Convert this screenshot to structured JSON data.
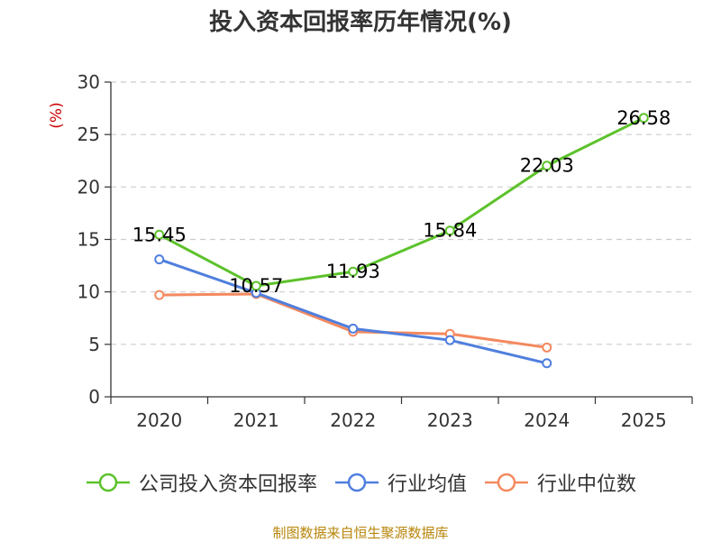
{
  "chart_data": {
    "type": "line",
    "title": "投入资本回报率历年情况(%)",
    "ylabel": "(%)",
    "xlabel": "",
    "categories": [
      "2020",
      "2021",
      "2022",
      "2023",
      "2024",
      "2025"
    ],
    "ylim": [
      0,
      30
    ],
    "yticks": [
      0,
      5,
      10,
      15,
      20,
      25,
      30
    ],
    "grid": true,
    "legend_position": "bottom",
    "series": [
      {
        "name": "公司投入资本回报率",
        "color": "#5cc22a",
        "values": [
          15.45,
          10.57,
          11.93,
          15.84,
          22.03,
          26.58
        ],
        "data_labels": [
          "15.45",
          "10.57",
          "11.93",
          "15.84",
          "22.03",
          "26.58"
        ]
      },
      {
        "name": "行业均值",
        "color": "#4f7fde",
        "values": [
          13.1,
          9.9,
          6.5,
          5.4,
          3.2,
          null
        ]
      },
      {
        "name": "行业中位数",
        "color": "#f4895f",
        "values": [
          9.7,
          9.8,
          6.2,
          6.0,
          4.7,
          null
        ]
      }
    ]
  },
  "source_note": "制图数据来自恒生聚源数据库",
  "colors": {
    "ylabel": "#cc0000",
    "axis": "#333333",
    "grid": "#cccccc"
  }
}
